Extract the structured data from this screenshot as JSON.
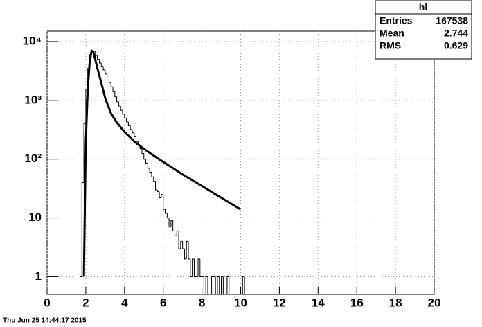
{
  "chart_data": {
    "type": "histogram",
    "log_y": true,
    "grid": true,
    "color": "#000000",
    "bins": [
      1.6,
      1.7,
      1.8,
      1.9,
      2.0,
      2.1,
      2.2,
      2.3,
      2.4,
      2.5,
      2.6,
      2.7,
      2.8,
      2.9,
      3.0,
      3.1,
      3.2,
      3.3,
      3.4,
      3.5,
      3.6,
      3.7,
      3.8,
      3.9,
      4.0,
      4.1,
      4.2,
      4.3,
      4.4,
      4.5,
      4.6,
      4.7,
      4.8,
      4.9,
      5.0,
      5.1,
      5.2,
      5.3,
      5.4,
      5.5,
      5.6,
      5.7,
      5.8,
      5.9,
      6.0,
      6.1,
      6.2,
      6.3,
      6.4,
      6.5,
      6.6,
      6.7,
      6.8,
      6.9,
      7.0,
      7.1,
      7.2,
      7.3,
      7.4,
      7.5,
      7.6,
      7.7,
      7.8,
      7.9,
      8.0,
      8.1,
      8.2,
      8.3,
      8.4,
      8.5,
      8.6,
      8.7,
      8.8,
      8.9,
      9.0,
      9.1,
      9.2,
      9.3,
      9.4,
      9.5,
      9.6,
      9.7,
      9.8,
      9.9,
      10.0,
      10.1,
      10.2,
      10.3,
      10.4
    ],
    "values": [
      0,
      1,
      40,
      400,
      1500,
      3500,
      6000,
      7000,
      6800,
      5800,
      5000,
      4300,
      3800,
      3300,
      2800,
      2400,
      2000,
      1700,
      1400,
      1150,
      950,
      800,
      680,
      580,
      500,
      430,
      370,
      320,
      280,
      240,
      200,
      170,
      150,
      125,
      100,
      85,
      70,
      60,
      50,
      42,
      30,
      28,
      22,
      25,
      14,
      12,
      10,
      7,
      9,
      6,
      5,
      6,
      3,
      4,
      3,
      2,
      4,
      2,
      1,
      2,
      1,
      1,
      2,
      1,
      1,
      0,
      1,
      0,
      0,
      1,
      1,
      0,
      1,
      0,
      1,
      0,
      0,
      1,
      0,
      0,
      0,
      0,
      0,
      0,
      0,
      1,
      0,
      0
    ],
    "overlay": {
      "type": "line",
      "color": "#000000",
      "x": [
        1.9,
        2.0,
        2.1,
        2.2,
        2.3,
        2.4,
        2.5,
        2.6,
        2.8,
        3.0,
        3.3,
        3.6,
        4,
        4.5,
        5,
        5.5,
        6,
        7,
        8,
        9,
        10
      ],
      "values": [
        1,
        200,
        1500,
        4500,
        7000,
        6500,
        4800,
        3500,
        2000,
        1100,
        600,
        420,
        290,
        200,
        150,
        115,
        90,
        55,
        35,
        22,
        14
      ]
    },
    "xlim": [
      0,
      20
    ],
    "xticks": [
      0,
      2,
      4,
      6,
      8,
      10,
      12,
      14,
      16,
      18,
      20
    ],
    "ylim": [
      0.5,
      15000
    ],
    "yticks": [
      1,
      10,
      {
        "value": 100,
        "label": "10²"
      },
      {
        "value": 1000,
        "label": "10³"
      },
      {
        "value": 10000,
        "label": "10⁴"
      }
    ]
  },
  "stats": {
    "title": "hI",
    "rows": [
      [
        "Entries",
        167538
      ],
      [
        "Mean",
        2.744
      ],
      [
        "RMS",
        0.629
      ]
    ]
  },
  "date": "Thu Jun 25 14:44:17 2015"
}
